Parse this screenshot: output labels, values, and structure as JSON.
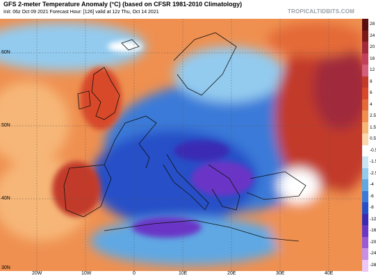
{
  "header": {
    "title": "GFS 2-meter Temperature Anomaly (°C) (based on CFSR 1981-2010 Climatology)",
    "subtitle": "Init: 06z Oct 09 2021   Forecast Hour: [126]   valid at 12z Thu, Oct 14 2021",
    "brand": "TROPICALTIDBITS.COM"
  },
  "axes": {
    "lat_labels": [
      "60N",
      "50N",
      "40N",
      "30N"
    ],
    "lon_labels": [
      "20W",
      "10W",
      "0",
      "10E",
      "20E",
      "30E",
      "40E"
    ]
  },
  "colorbar": {
    "labels": [
      "28",
      "24",
      "20",
      "16",
      "12",
      "8",
      "6",
      "4",
      "2.5",
      "1.5",
      "0.5",
      "-0.5",
      "-1.5",
      "-2.5",
      "-4",
      "-6",
      "-8",
      "-12",
      "-16",
      "-20",
      "-24",
      "-28"
    ],
    "colors": [
      "#5a0f0f",
      "#7a1a1a",
      "#a02a3a",
      "#c2405a",
      "#d45f7a",
      "#c23a2a",
      "#d8482c",
      "#e46a38",
      "#ef9050",
      "#f6b677",
      "#fbd7b0",
      "#ffffff",
      "#c9e4f5",
      "#93cbef",
      "#5fa8e4",
      "#3a7ad8",
      "#2650c8",
      "#3a2ab4",
      "#6a36c6",
      "#9a5ad6",
      "#c88fe6",
      "#ecc7f5"
    ]
  },
  "map_colors": {
    "warm_ocean": "#ef9050",
    "hot": "#c23a2a",
    "cold": "#3a7ad8",
    "very_cold": "#2650c8",
    "coldest": "#6a36c6",
    "light_blue": "#93cbef",
    "neutral": "#fbd7b0"
  }
}
